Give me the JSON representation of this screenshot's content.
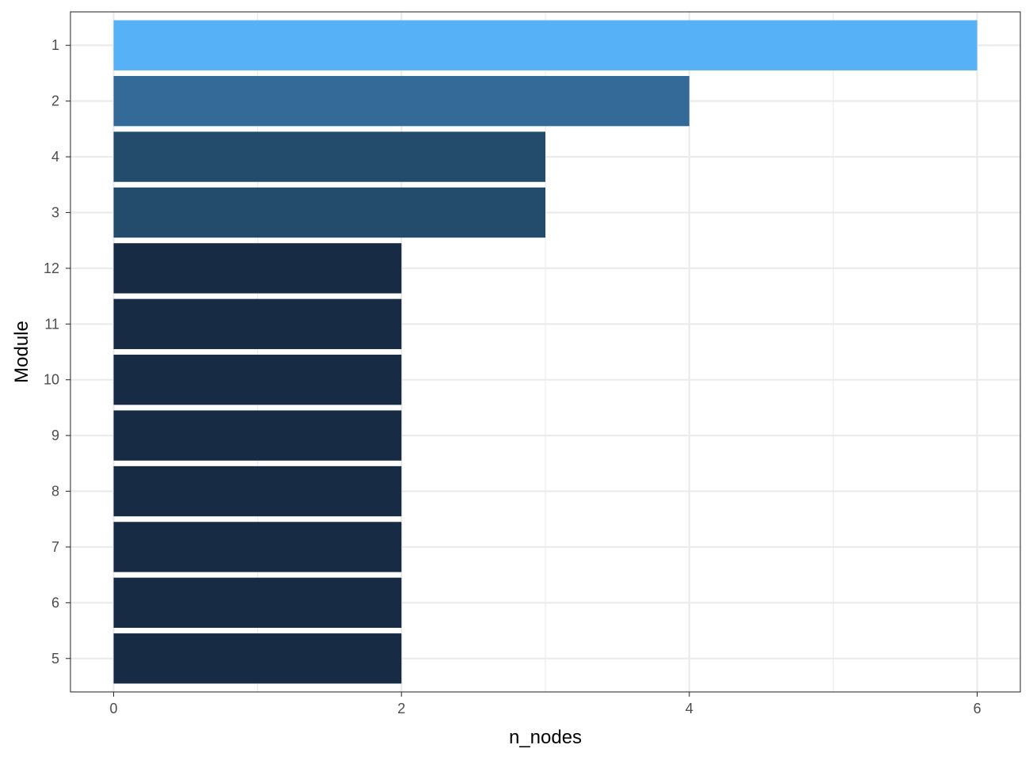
{
  "chart_data": {
    "type": "bar",
    "orientation": "horizontal",
    "title": "",
    "xlabel": "n_nodes",
    "ylabel": "Module",
    "categories": [
      "1",
      "2",
      "4",
      "3",
      "12",
      "11",
      "10",
      "9",
      "8",
      "7",
      "6",
      "5"
    ],
    "values": [
      6,
      4,
      3,
      3,
      2,
      2,
      2,
      2,
      2,
      2,
      2,
      2
    ],
    "xlim": [
      -0.3,
      6.3
    ],
    "xticks": [
      0,
      2,
      4,
      6
    ],
    "x_minor_gridlines": [
      1,
      3,
      5
    ],
    "grid": true,
    "legend": "none",
    "colors": [
      "#56B1F7",
      "#336A98",
      "#234B6C",
      "#234B6C",
      "#172C44",
      "#172C44",
      "#172C44",
      "#172C44",
      "#172C44",
      "#172C44",
      "#172C44",
      "#172C44"
    ],
    "grid_color": "#EBEBEB",
    "panel_border_color": "#333333"
  }
}
